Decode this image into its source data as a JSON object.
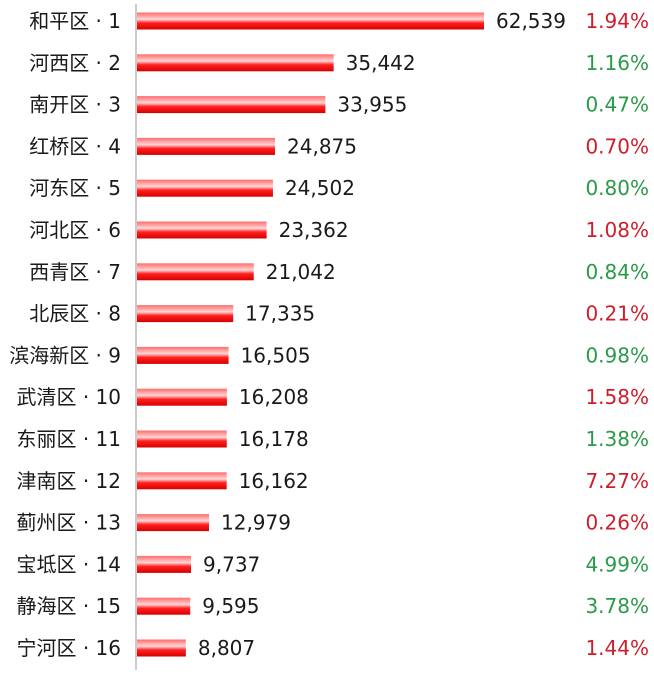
{
  "chart_data": {
    "type": "bar",
    "orientation": "horizontal",
    "categories": [
      "和平区 · 1",
      "河西区 · 2",
      "南开区 · 3",
      "红桥区 · 4",
      "河东区 · 5",
      "河北区 · 6",
      "西青区 · 7",
      "北辰区 · 8",
      "滨海新区 · 9",
      "武清区 · 10",
      "东丽区 · 11",
      "津南区 · 12",
      "蓟州区 · 13",
      "宝坻区 · 14",
      "静海区 · 15",
      "宁河区 · 16"
    ],
    "values": [
      62539,
      35442,
      33955,
      24875,
      24502,
      23362,
      21042,
      17335,
      16505,
      16208,
      16178,
      16162,
      12979,
      9737,
      9595,
      8807
    ],
    "value_labels": [
      "62,539",
      "35,442",
      "33,955",
      "24,875",
      "24,502",
      "23,362",
      "21,042",
      "17,335",
      "16,505",
      "16,208",
      "16,178",
      "16,162",
      "12,979",
      "9,737",
      "9,595",
      "8,807"
    ],
    "changes": [
      "1.94%",
      "1.16%",
      "0.47%",
      "0.70%",
      "0.80%",
      "1.08%",
      "0.84%",
      "0.21%",
      "0.98%",
      "1.58%",
      "1.38%",
      "7.27%",
      "0.26%",
      "4.99%",
      "3.78%",
      "1.44%"
    ],
    "change_colors": [
      "#cc1f2b",
      "#2a9a48",
      "#2a9a48",
      "#cc1f2b",
      "#2a9a48",
      "#cc1f2b",
      "#2a9a48",
      "#cc1f2b",
      "#2a9a48",
      "#cc1f2b",
      "#2a9a48",
      "#cc1f2b",
      "#cc1f2b",
      "#2a9a48",
      "#2a9a48",
      "#cc1f2b"
    ],
    "title": "",
    "xlabel": "",
    "ylabel": "",
    "grid": false,
    "legend": "none",
    "bar_color": "#ff1414",
    "bar_highlight": "#ffd6d6",
    "value_max": 62539
  }
}
